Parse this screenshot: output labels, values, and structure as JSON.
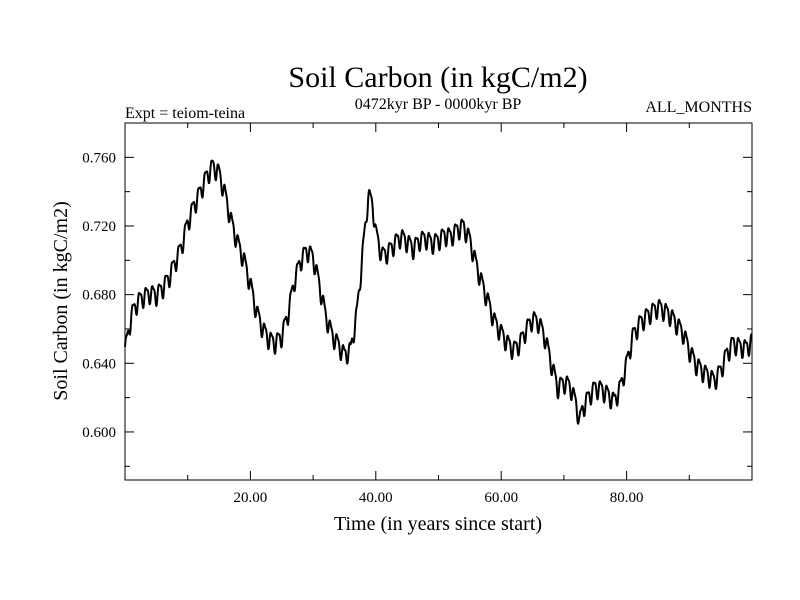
{
  "chart_data": {
    "type": "line",
    "title": "Soil Carbon (in kgC/m2)",
    "subtitle_left": "Expt = teiom-teina",
    "subtitle_center": "0472kyr BP - 0000kyr BP",
    "subtitle_right": "ALL_MONTHS",
    "xlabel": "Time (in years since start)",
    "ylabel": "Soil Carbon (in kgC/m2)",
    "xlim": [
      0,
      100
    ],
    "ylim": [
      0.572,
      0.78
    ],
    "xticks_major": [
      20,
      40,
      60,
      80
    ],
    "xtick_labels": [
      "20.00",
      "40.00",
      "60.00",
      "80.00"
    ],
    "xticks_minor": [
      10,
      30,
      50,
      70,
      90
    ],
    "yticks_major": [
      0.6,
      0.64,
      0.68,
      0.72,
      0.76
    ],
    "ytick_labels": [
      "0.600",
      "0.640",
      "0.680",
      "0.720",
      "0.760"
    ],
    "yticks_minor": [
      0.58,
      0.62,
      0.66,
      0.7,
      0.74,
      0.78
    ],
    "grid": false,
    "line_color": "#000000",
    "series": [
      {
        "name": "Soil Carbon",
        "x": [
          0,
          0.5,
          1,
          2,
          3,
          4,
          5,
          6,
          7,
          8,
          9,
          10,
          11,
          12,
          13,
          14,
          15,
          16,
          17,
          18,
          19,
          20,
          21,
          22,
          23,
          24,
          25,
          26,
          27,
          28,
          29,
          30,
          31,
          32,
          33,
          34,
          35,
          36,
          37,
          38,
          38.8,
          39.5,
          40,
          41,
          42,
          43,
          44,
          45,
          46,
          47,
          48,
          49,
          50,
          51,
          52,
          53,
          54,
          55,
          56,
          57,
          58,
          59,
          60,
          61,
          62,
          63,
          64,
          65,
          66,
          67,
          68,
          69,
          70,
          71,
          72,
          72.5,
          73,
          74,
          75,
          76,
          77,
          78,
          79,
          80,
          81,
          82,
          83,
          84,
          85,
          86,
          87,
          88,
          89,
          90,
          91,
          92,
          93,
          94,
          95,
          96,
          97,
          98,
          99,
          100
        ],
        "values": [
          0.648,
          0.657,
          0.668,
          0.676,
          0.679,
          0.681,
          0.68,
          0.684,
          0.69,
          0.699,
          0.708,
          0.722,
          0.732,
          0.74,
          0.749,
          0.755,
          0.751,
          0.738,
          0.722,
          0.71,
          0.7,
          0.686,
          0.67,
          0.66,
          0.654,
          0.652,
          0.656,
          0.669,
          0.688,
          0.7,
          0.706,
          0.702,
          0.686,
          0.668,
          0.657,
          0.651,
          0.645,
          0.648,
          0.67,
          0.708,
          0.738,
          0.733,
          0.716,
          0.703,
          0.705,
          0.71,
          0.714,
          0.711,
          0.707,
          0.712,
          0.713,
          0.71,
          0.712,
          0.715,
          0.714,
          0.718,
          0.72,
          0.712,
          0.698,
          0.686,
          0.675,
          0.664,
          0.658,
          0.652,
          0.648,
          0.652,
          0.66,
          0.666,
          0.664,
          0.655,
          0.64,
          0.626,
          0.629,
          0.627,
          0.616,
          0.606,
          0.614,
          0.621,
          0.626,
          0.625,
          0.622,
          0.618,
          0.626,
          0.64,
          0.656,
          0.663,
          0.667,
          0.67,
          0.673,
          0.671,
          0.668,
          0.663,
          0.658,
          0.648,
          0.64,
          0.636,
          0.633,
          0.63,
          0.636,
          0.646,
          0.652,
          0.65,
          0.649,
          0.653
        ],
        "ripple_amplitude": 0.005,
        "ripple_period": 1.05
      }
    ]
  }
}
